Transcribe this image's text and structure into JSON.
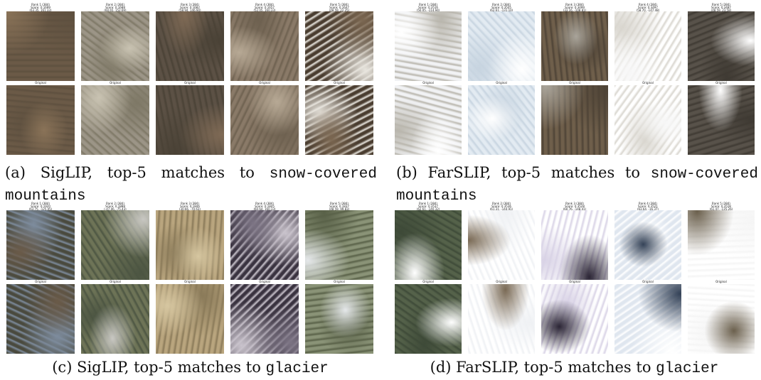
{
  "panels": [
    {
      "id": "a",
      "caption": {
        "prefix": "(a) SigLIP, top-5 matches to ",
        "query": "snow-covered mountains"
      },
      "matches": [
        {
          "rank": "Rank 1 (384)",
          "score": "Score: 0.1699",
          "coords": "(63.35, 161.33)",
          "original": "Original"
        },
        {
          "rank": "Rank 2 (384)",
          "score": "Score: 0.1688",
          "coords": "(60.65, 152.69)",
          "original": "Original"
        },
        {
          "rank": "Rank 3 (384)",
          "score": "Score: 0.1682",
          "coords": "(58.94, 146.94)",
          "original": "Original"
        },
        {
          "rank": "Rank 4 (384)",
          "score": "Score: 0.1657",
          "coords": "(52.05, 160.33)",
          "original": "Original"
        },
        {
          "rank": "Rank 5 (384)",
          "score": "Score: 0.1647",
          "coords": "(48.59, 22.25)",
          "original": "Original"
        }
      ]
    },
    {
      "id": "b",
      "caption": {
        "prefix": "(b) FarSLIP, top-5 matches to ",
        "query": "snow-covered mountains"
      },
      "matches": [
        {
          "rank": "Rank 1 (384)",
          "score": "Score: 0.3516",
          "coords": "(50.05, -114.94)",
          "original": "Original"
        },
        {
          "rank": "Rank 2 (384)",
          "score": "Score: 0.3505",
          "coords": "(62.61, -131.10)",
          "original": "Original"
        },
        {
          "rank": "Rank 3 (384)",
          "score": "Score: 0.3499",
          "coords": "(33.16, -108.81)",
          "original": "Original"
        },
        {
          "rank": "Rank 4 (384)",
          "score": "Score: 0.3497",
          "coords": "(58.70, -147.48)",
          "original": "Original"
        },
        {
          "rank": "Rank 5 (384)",
          "score": "Score: 0.3487",
          "coords": "(48.59, 23.58)",
          "original": "Original"
        }
      ]
    },
    {
      "id": "c",
      "caption": {
        "prefix": "(c) SigLIP, top-5 matches to ",
        "query": "glacier"
      },
      "matches": [
        {
          "rank": "Rank 1 (384)",
          "score": "Score: 0.1920",
          "coords": "(63.75, -125.05)",
          "original": "Original"
        },
        {
          "rank": "Rank 2 (384)",
          "score": "Score: 0.1888",
          "coords": "(-47.06, -75.43)",
          "original": "Original"
        },
        {
          "rank": "Rank 3 (384)",
          "score": "Score: 0.1846",
          "coords": "(30.66, -70.63)",
          "original": "Original"
        },
        {
          "rank": "Rank 4 (384)",
          "score": "Score: 0.1845",
          "coords": "(60.64, 160.33)",
          "original": "Original"
        },
        {
          "rank": "Rank 5 (384)",
          "score": "Score: 0.1837",
          "coords": "(48.59, 99.83)",
          "original": "Original"
        }
      ]
    },
    {
      "id": "d",
      "caption": {
        "prefix": "(d) FarSLIP, top-5 matches to ",
        "query": "glacier"
      },
      "matches": [
        {
          "rank": "Rank 1 (384)",
          "score": "Score: 0.3537",
          "coords": "(62.61, -140.32)",
          "original": "Original"
        },
        {
          "rank": "Rank 2 (384)",
          "score": "Score: 0.3536",
          "coords": "(61.31, -144.91)",
          "original": "Original"
        },
        {
          "rank": "Rank 3 (384)",
          "score": "Score: 0.3528",
          "coords": "(60.76, -148.41)",
          "original": "Original"
        },
        {
          "rank": "Rank 4 (384)",
          "score": "Score: 0.3521",
          "coords": "(63.64, -16.37)",
          "original": "Original"
        },
        {
          "rank": "Rank 5 (384)",
          "score": "Score: 0.3518",
          "coords": "(61.47, -135.26)",
          "original": "Original"
        }
      ]
    }
  ]
}
